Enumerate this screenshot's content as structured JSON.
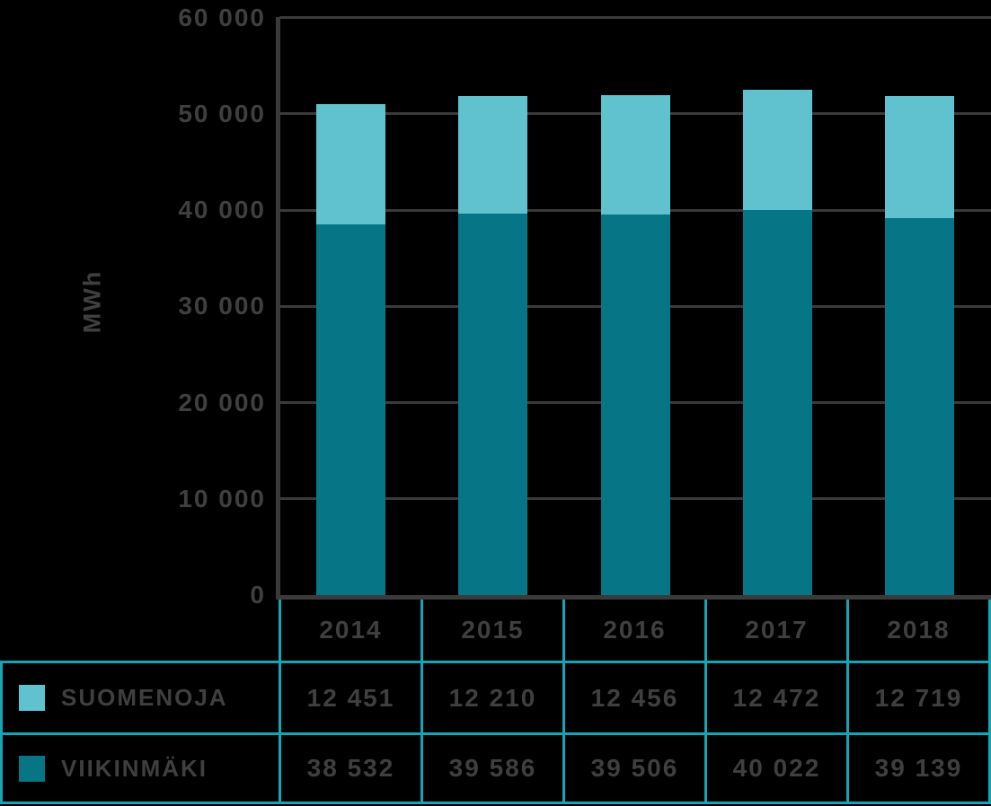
{
  "chart_data": {
    "type": "bar",
    "stacked": true,
    "title": "",
    "xlabel": "",
    "ylabel": "MWh",
    "ylim": [
      0,
      60000
    ],
    "ytick_step": 10000,
    "ytick_labels": [
      "0",
      "10 000",
      "20 000",
      "30 000",
      "40 000",
      "50 000",
      "60 000"
    ],
    "grid": true,
    "legend_position": "table-rows-below-chart",
    "categories": [
      "2014",
      "2015",
      "2016",
      "2017",
      "2018"
    ],
    "series": [
      {
        "name": "SUOMENOJA",
        "color": "#5fc2ce",
        "values": [
          12451,
          12210,
          12456,
          12472,
          12719
        ],
        "value_labels": [
          "12 451",
          "12 210",
          "12 456",
          "12 472",
          "12 719"
        ]
      },
      {
        "name": "VIIKINMÄKI",
        "color": "#067586",
        "values": [
          38532,
          39586,
          39506,
          40022,
          39139
        ],
        "value_labels": [
          "38 532",
          "39 586",
          "39 506",
          "40 022",
          "39 139"
        ]
      }
    ]
  },
  "style": {
    "background": "#000000",
    "text_color": "#3f3f3f",
    "grid_color": "#3a3a3a",
    "axis_color": "#3a3a3a",
    "table_border_color": "#16a5b5"
  }
}
